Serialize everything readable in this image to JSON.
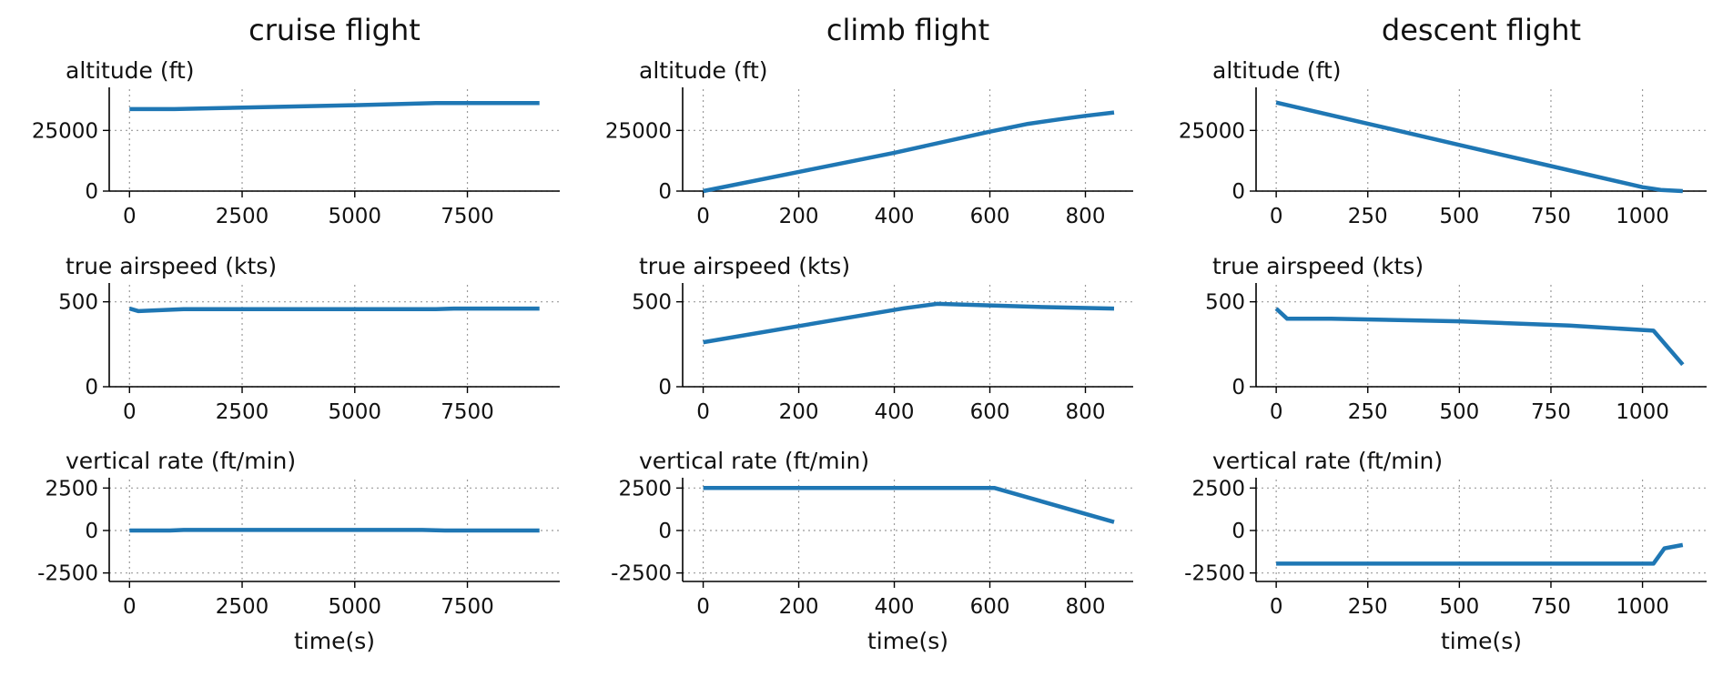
{
  "figure": {
    "colors": {
      "series": "#1f77b4",
      "grid": "#9a9a9a"
    }
  },
  "chart_data": [
    {
      "type": "line",
      "column_title": "cruise flight",
      "title": "altitude (ft)",
      "xlabel": "",
      "x": [
        0,
        1000,
        2500,
        5000,
        6800,
        7500,
        9100
      ],
      "y": [
        33800,
        33800,
        34400,
        35400,
        36300,
        36300,
        36300
      ],
      "xlim": [
        -450,
        9550
      ],
      "ylim": [
        0,
        42000
      ],
      "xticks": [
        0,
        2500,
        5000,
        7500
      ],
      "yticks": [
        0,
        25000
      ],
      "grid": true
    },
    {
      "type": "line",
      "column_title": "climb flight",
      "title": "altitude (ft)",
      "xlabel": "",
      "x": [
        0,
        200,
        400,
        600,
        680,
        750,
        800,
        860
      ],
      "y": [
        0,
        7900,
        15800,
        24500,
        27700,
        29700,
        31000,
        32400
      ],
      "xlim": [
        -43,
        900
      ],
      "ylim": [
        0,
        42000
      ],
      "xticks": [
        0,
        200,
        400,
        600,
        800
      ],
      "yticks": [
        0,
        25000
      ],
      "grid": true
    },
    {
      "type": "line",
      "column_title": "descent flight",
      "title": "altitude (ft)",
      "xlabel": "",
      "x": [
        0,
        250,
        500,
        750,
        1000,
        1050,
        1110
      ],
      "y": [
        36500,
        27800,
        19000,
        10300,
        1600,
        500,
        0
      ],
      "xlim": [
        -55,
        1175
      ],
      "ylim": [
        0,
        42000
      ],
      "xticks": [
        0,
        250,
        500,
        750,
        1000
      ],
      "yticks": [
        0,
        25000
      ],
      "grid": true
    },
    {
      "type": "line",
      "title": "true airspeed (kts)",
      "xlabel": "",
      "x": [
        0,
        200,
        1200,
        6800,
        7200,
        9100
      ],
      "y": [
        460,
        445,
        457,
        457,
        460,
        460
      ],
      "xlim": [
        -450,
        9550
      ],
      "ylim": [
        0,
        600
      ],
      "xticks": [
        0,
        2500,
        5000,
        7500
      ],
      "yticks": [
        0,
        500
      ],
      "grid": true
    },
    {
      "type": "line",
      "title": "true airspeed (kts)",
      "xlabel": "",
      "x": [
        0,
        420,
        490,
        700,
        860
      ],
      "y": [
        262,
        462,
        488,
        470,
        460
      ],
      "xlim": [
        -43,
        900
      ],
      "ylim": [
        0,
        600
      ],
      "xticks": [
        0,
        200,
        400,
        600,
        800
      ],
      "yticks": [
        0,
        500
      ],
      "grid": true
    },
    {
      "type": "line",
      "title": "true airspeed (kts)",
      "xlabel": "",
      "x": [
        0,
        30,
        150,
        500,
        800,
        1030,
        1110
      ],
      "y": [
        460,
        400,
        400,
        385,
        360,
        330,
        130
      ],
      "xlim": [
        -55,
        1175
      ],
      "ylim": [
        0,
        600
      ],
      "xticks": [
        0,
        250,
        500,
        750,
        1000
      ],
      "yticks": [
        0,
        500
      ],
      "grid": true
    },
    {
      "type": "line",
      "title": "vertical rate (ft/min)",
      "xlabel": "time(s)",
      "x": [
        0,
        900,
        1200,
        6500,
        7000,
        9100
      ],
      "y": [
        0,
        0,
        30,
        30,
        0,
        0
      ],
      "xlim": [
        -450,
        9550
      ],
      "ylim": [
        -3000,
        3000
      ],
      "xticks": [
        0,
        2500,
        5000,
        7500
      ],
      "yticks": [
        -2500,
        0,
        2500
      ],
      "grid": true
    },
    {
      "type": "line",
      "title": "vertical rate (ft/min)",
      "xlabel": "time(s)",
      "x": [
        0,
        610,
        860
      ],
      "y": [
        2500,
        2500,
        500
      ],
      "xlim": [
        -43,
        900
      ],
      "ylim": [
        -3000,
        3000
      ],
      "xticks": [
        0,
        200,
        400,
        600,
        800
      ],
      "yticks": [
        -2500,
        0,
        2500
      ],
      "grid": true
    },
    {
      "type": "line",
      "title": "vertical rate (ft/min)",
      "xlabel": "time(s)",
      "x": [
        0,
        1030,
        1060,
        1110
      ],
      "y": [
        -1950,
        -1950,
        -1050,
        -850
      ],
      "xlim": [
        -55,
        1175
      ],
      "ylim": [
        -3000,
        3000
      ],
      "xticks": [
        0,
        250,
        500,
        750,
        1000
      ],
      "yticks": [
        -2500,
        0,
        2500
      ],
      "grid": true
    }
  ]
}
